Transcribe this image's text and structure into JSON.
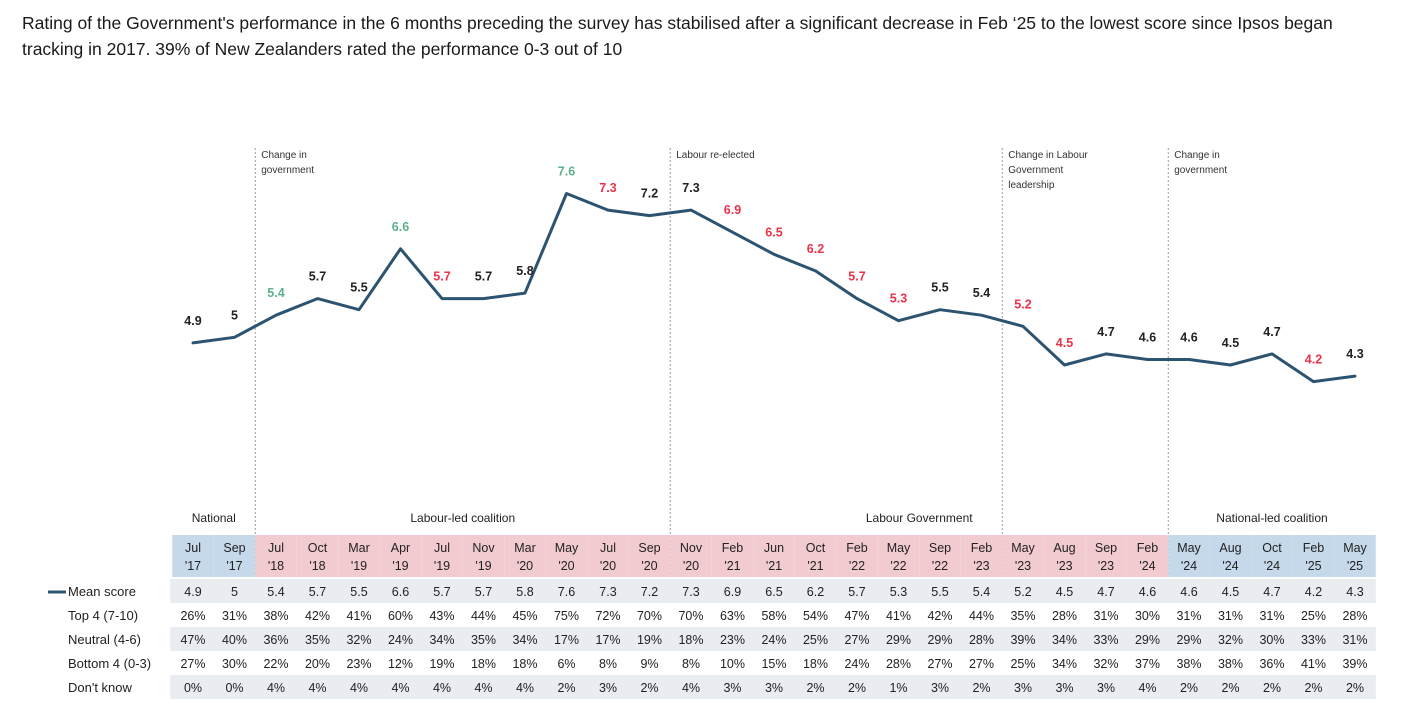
{
  "headline": "Rating of the Government's performance in the 6 months preceding the survey has stabilised after a significant decrease in Feb ‘25 to the lowest score since Ipsos began tracking in 2017. 39% of New Zealanders rated the performance 0-3 out of 10",
  "colors": {
    "line": "#2c5470",
    "neutral": "#222222",
    "increase": "#5bb08a",
    "decrease": "#e8334a",
    "national_band": "#c5d9ea",
    "labour_band": "#f2cbd0",
    "row_shade": "#e9ecf0",
    "divider": "#9a9a9a"
  },
  "chart_data": {
    "type": "line",
    "title": "Rating of the Government's performance in the 6 months preceding the survey",
    "ylim": [
      3,
      9
    ],
    "categories": [
      {
        "month": "Jul",
        "year": "'17",
        "band": "national"
      },
      {
        "month": "Sep",
        "year": "'17",
        "band": "national"
      },
      {
        "month": "Jul",
        "year": "'18",
        "band": "labour"
      },
      {
        "month": "Oct",
        "year": "'18",
        "band": "labour"
      },
      {
        "month": "Mar",
        "year": "'19",
        "band": "labour"
      },
      {
        "month": "Apr",
        "year": "'19",
        "band": "labour"
      },
      {
        "month": "Jul",
        "year": "'19",
        "band": "labour"
      },
      {
        "month": "Nov",
        "year": "'19",
        "band": "labour"
      },
      {
        "month": "Mar",
        "year": "'20",
        "band": "labour"
      },
      {
        "month": "May",
        "year": "'20",
        "band": "labour"
      },
      {
        "month": "Jul",
        "year": "'20",
        "band": "labour"
      },
      {
        "month": "Sep",
        "year": "'20",
        "band": "labour"
      },
      {
        "month": "Nov",
        "year": "'20",
        "band": "labour"
      },
      {
        "month": "Feb",
        "year": "'21",
        "band": "labour"
      },
      {
        "month": "Jun",
        "year": "'21",
        "band": "labour"
      },
      {
        "month": "Oct",
        "year": "'21",
        "band": "labour"
      },
      {
        "month": "Feb",
        "year": "'22",
        "band": "labour"
      },
      {
        "month": "May",
        "year": "'22",
        "band": "labour"
      },
      {
        "month": "Sep",
        "year": "'22",
        "band": "labour"
      },
      {
        "month": "Feb",
        "year": "'23",
        "band": "labour"
      },
      {
        "month": "May",
        "year": "'23",
        "band": "labour"
      },
      {
        "month": "Aug",
        "year": "'23",
        "band": "labour"
      },
      {
        "month": "Sep",
        "year": "'23",
        "band": "labour"
      },
      {
        "month": "Feb",
        "year": "'24",
        "band": "labour"
      },
      {
        "month": "May",
        "year": "'24",
        "band": "national"
      },
      {
        "month": "Aug",
        "year": "'24",
        "band": "national"
      },
      {
        "month": "Oct",
        "year": "'24",
        "band": "national"
      },
      {
        "month": "Feb",
        "year": "'25",
        "band": "national"
      },
      {
        "month": "May",
        "year": "'25",
        "band": "national"
      }
    ],
    "series": [
      {
        "name": "Mean score",
        "values": [
          4.9,
          5,
          5.4,
          5.7,
          5.5,
          6.6,
          5.7,
          5.7,
          5.8,
          7.6,
          7.3,
          7.2,
          7.3,
          6.9,
          6.5,
          6.2,
          5.7,
          5.3,
          5.5,
          5.4,
          5.2,
          4.5,
          4.7,
          4.6,
          4.6,
          4.5,
          4.7,
          4.2,
          4.3
        ]
      }
    ],
    "point_labels": [
      "4.9",
      "5",
      "5.4",
      "5.7",
      "5.5",
      "6.6",
      "5.7",
      "5.7",
      "5.8",
      "7.6",
      "7.3",
      "7.2",
      "7.3",
      "6.9",
      "6.5",
      "6.2",
      "5.7",
      "5.3",
      "5.5",
      "5.4",
      "5.2",
      "4.5",
      "4.7",
      "4.6",
      "4.6",
      "4.5",
      "4.7",
      "4.2",
      "4.3"
    ],
    "label_status": [
      "neutral",
      "neutral",
      "increase",
      "neutral",
      "neutral",
      "increase",
      "decrease",
      "neutral",
      "neutral",
      "increase",
      "decrease",
      "neutral",
      "neutral",
      "decrease",
      "decrease",
      "decrease",
      "decrease",
      "decrease",
      "neutral",
      "neutral",
      "decrease",
      "decrease",
      "neutral",
      "neutral",
      "neutral",
      "neutral",
      "neutral",
      "decrease",
      "neutral"
    ],
    "annotations": [
      {
        "after_index": 1,
        "lines": [
          "Change in",
          "government"
        ]
      },
      {
        "after_index": 11,
        "lines": [
          "Labour re-elected"
        ]
      },
      {
        "after_index": 19,
        "lines": [
          "Change in Labour",
          "Government",
          "leadership"
        ]
      },
      {
        "after_index": 23,
        "lines": [
          "Change in",
          "government"
        ]
      }
    ],
    "government_bands": [
      {
        "label": "National",
        "from_index": 0,
        "to_index": 1
      },
      {
        "label": "Labour-led coalition",
        "from_index": 2,
        "to_index": 11
      },
      {
        "label": "Labour Government",
        "from_index": 12,
        "to_index": 23
      },
      {
        "label": "National-led coalition",
        "from_index": 24,
        "to_index": 28
      }
    ],
    "table": {
      "legend_label": "Mean score",
      "rows": [
        {
          "label": "Mean score",
          "shaded": true,
          "values": [
            "4.9",
            "5",
            "5.4",
            "5.7",
            "5.5",
            "6.6",
            "5.7",
            "5.7",
            "5.8",
            "7.6",
            "7.3",
            "7.2",
            "7.3",
            "6.9",
            "6.5",
            "6.2",
            "5.7",
            "5.3",
            "5.5",
            "5.4",
            "5.2",
            "4.5",
            "4.7",
            "4.6",
            "4.6",
            "4.5",
            "4.7",
            "4.2",
            "4.3"
          ]
        },
        {
          "label": "Top 4 (7-10)",
          "shaded": false,
          "values": [
            "26%",
            "31%",
            "38%",
            "42%",
            "41%",
            "60%",
            "43%",
            "44%",
            "45%",
            "75%",
            "72%",
            "70%",
            "70%",
            "63%",
            "58%",
            "54%",
            "47%",
            "41%",
            "42%",
            "44%",
            "35%",
            "28%",
            "31%",
            "30%",
            "31%",
            "31%",
            "31%",
            "25%",
            "28%"
          ]
        },
        {
          "label": "Neutral (4-6)",
          "shaded": true,
          "values": [
            "47%",
            "40%",
            "36%",
            "35%",
            "32%",
            "24%",
            "34%",
            "35%",
            "34%",
            "17%",
            "17%",
            "19%",
            "18%",
            "23%",
            "24%",
            "25%",
            "27%",
            "29%",
            "29%",
            "28%",
            "39%",
            "34%",
            "33%",
            "29%",
            "29%",
            "32%",
            "30%",
            "33%",
            "31%"
          ]
        },
        {
          "label": "Bottom 4 (0-3)",
          "shaded": false,
          "values": [
            "27%",
            "30%",
            "22%",
            "20%",
            "23%",
            "12%",
            "19%",
            "18%",
            "18%",
            "6%",
            "8%",
            "9%",
            "8%",
            "10%",
            "15%",
            "18%",
            "24%",
            "28%",
            "27%",
            "27%",
            "25%",
            "34%",
            "32%",
            "37%",
            "38%",
            "38%",
            "36%",
            "41%",
            "39%"
          ]
        },
        {
          "label": "Don't know",
          "shaded": true,
          "values": [
            "0%",
            "0%",
            "4%",
            "4%",
            "4%",
            "4%",
            "4%",
            "4%",
            "4%",
            "2%",
            "3%",
            "2%",
            "4%",
            "3%",
            "3%",
            "2%",
            "2%",
            "1%",
            "3%",
            "2%",
            "3%",
            "3%",
            "3%",
            "4%",
            "2%",
            "2%",
            "2%",
            "2%",
            "2%"
          ]
        }
      ]
    }
  }
}
